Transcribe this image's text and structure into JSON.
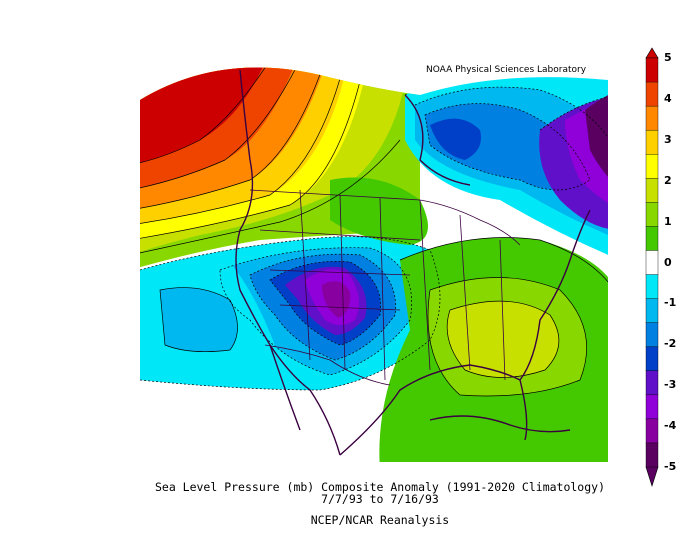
{
  "credit": "NOAA Physical Sciences Laboratory",
  "caption": {
    "line1": "Sea Level Pressure (mb) Composite Anomaly (1991-2020 Climatology)",
    "line2": "7/7/93  to 7/16/93",
    "line3": "NCEP/NCAR Reanalysis"
  },
  "colorbar": {
    "labels": [
      "5",
      "4",
      "3",
      "2",
      "1",
      "0",
      "-1",
      "-2",
      "-3",
      "-4",
      "-5"
    ],
    "colors": [
      "#cc0000",
      "#ee4400",
      "#ff8800",
      "#ffd000",
      "#ffff00",
      "#c8e000",
      "#88d800",
      "#44c800",
      "#ffffff",
      "#00e8f8",
      "#00b8f0",
      "#0080e0",
      "#0040c8",
      "#6010c8",
      "#9000d8",
      "#8800a0",
      "#5a0060"
    ]
  },
  "map_colors": {
    "strong_high": "#cc0000",
    "high": "#ff8800",
    "moderate_high": "#ffd000",
    "weak_high": "#88d800",
    "neutral": "#ffffff",
    "weak_low": "#00e8f8",
    "low": "#0080e0",
    "strong_low": "#9000d8",
    "coast": "#3a0040"
  }
}
